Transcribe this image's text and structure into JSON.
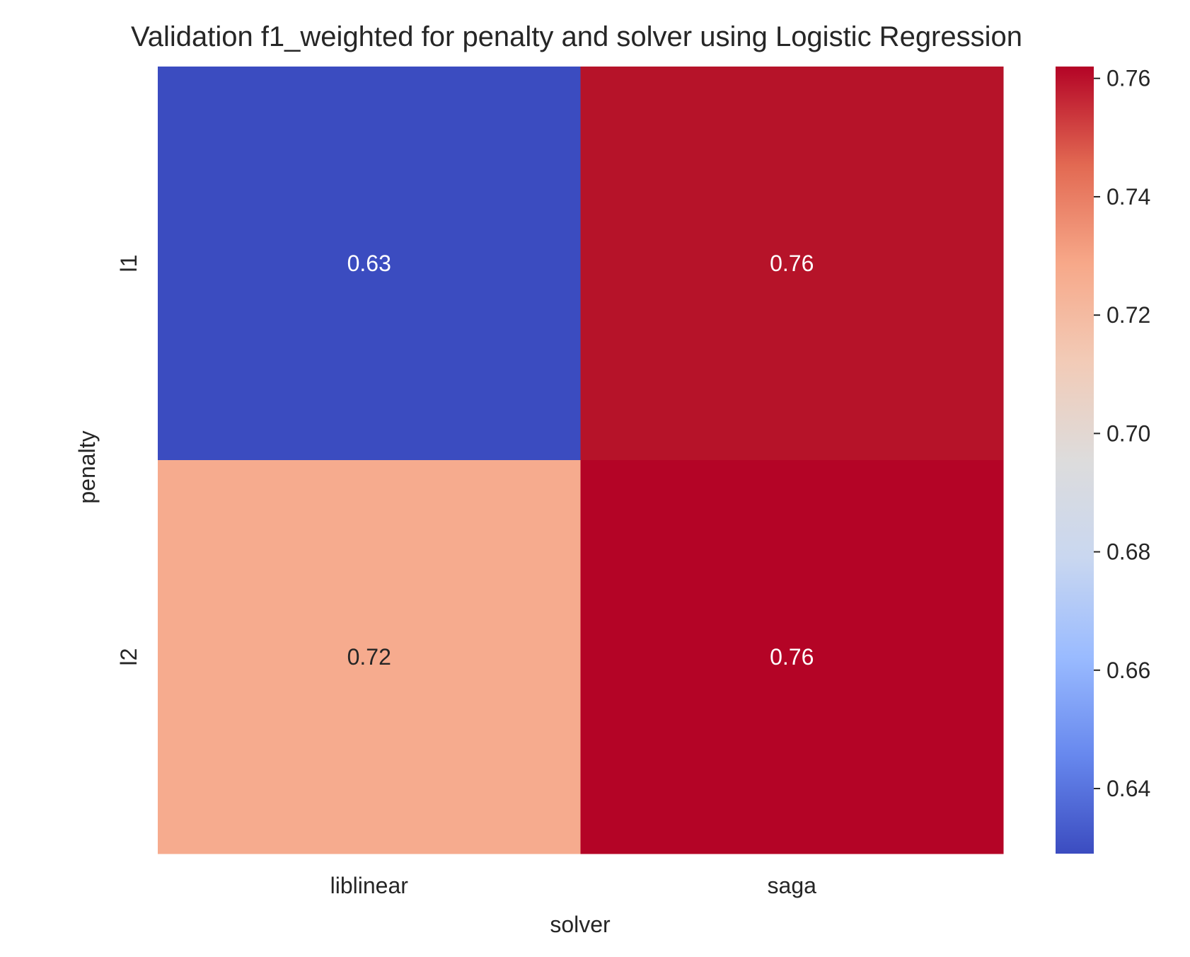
{
  "chart_data": {
    "type": "heatmap",
    "title": "Validation f1_weighted for penalty and solver using Logistic Regression",
    "xlabel": "solver",
    "ylabel": "penalty",
    "x_categories": [
      "liblinear",
      "saga"
    ],
    "y_categories": [
      "l1",
      "l2"
    ],
    "values": [
      [
        0.63,
        0.76
      ],
      [
        0.72,
        0.76
      ]
    ],
    "cell_labels": [
      [
        "0.63",
        "0.76"
      ],
      [
        "0.72",
        "0.76"
      ]
    ],
    "cell_colors": [
      [
        "#3b4cc0",
        "#b61329"
      ],
      [
        "#f6ab8e",
        "#b40426"
      ]
    ],
    "colorbar": {
      "colormap": "coolwarm",
      "vmin": 0.629,
      "vmax": 0.762,
      "ticks": [
        0.64,
        0.66,
        0.68,
        0.7,
        0.72,
        0.74,
        0.76
      ],
      "tick_labels": [
        "0.64",
        "0.66",
        "0.68",
        "0.70",
        "0.72",
        "0.74",
        "0.76"
      ],
      "stops": [
        "#3b4cc0",
        "#6788ee",
        "#9abbff",
        "#c9d7f0",
        "#dddcdc",
        "#f2cbb7",
        "#f7a889",
        "#e26952",
        "#b40426"
      ]
    },
    "grid": false
  }
}
